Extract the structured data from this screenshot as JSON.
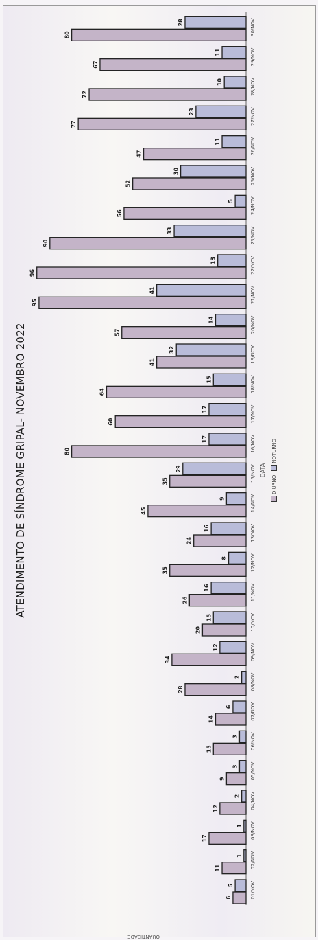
{
  "chart_data": {
    "type": "bar",
    "title": "ATENDIMENTO DE SÍNDROME GRIPAL- NOVEMBRO 2022",
    "xlabel": "DATA",
    "ylabel": "QUANTIDADE",
    "categories": [
      "01/NOV",
      "02/NOV",
      "03/NOV",
      "04/NOV",
      "05/NOV",
      "06/NOV",
      "07/NOV",
      "08/NOV",
      "09/NOV",
      "10/NOV",
      "11/NOV",
      "12/NOV",
      "13/NOV",
      "14/NOV",
      "15/NOV",
      "16/NOV",
      "17/NOV",
      "18/NOV",
      "19/NOV",
      "20/NOV",
      "21/NOV",
      "22/NOV",
      "23/NOV",
      "24/NOV",
      "25/NOV",
      "26/NOV",
      "27/NOV",
      "28/NOV",
      "29/NOV",
      "30/NOV"
    ],
    "series": [
      {
        "name": "DIURNO",
        "color": "#c4b4c8",
        "values": [
          6,
          11,
          17,
          12,
          9,
          15,
          14,
          28,
          34,
          20,
          26,
          35,
          24,
          45,
          35,
          80,
          60,
          64,
          41,
          57,
          95,
          96,
          90,
          56,
          52,
          47,
          77,
          72,
          67,
          80
        ]
      },
      {
        "name": "NOTURNO",
        "color": "#b9bcd9",
        "values": [
          5,
          1,
          1,
          2,
          3,
          3,
          6,
          2,
          12,
          15,
          16,
          8,
          16,
          9,
          29,
          17,
          17,
          15,
          32,
          14,
          41,
          13,
          33,
          5,
          30,
          11,
          23,
          10,
          11,
          28
        ]
      }
    ],
    "ylim": [
      0,
      100
    ],
    "legend_position": "bottom",
    "grid": false
  },
  "legend": {
    "diurno": "DIURNO",
    "noturno": "NOTURNO"
  }
}
